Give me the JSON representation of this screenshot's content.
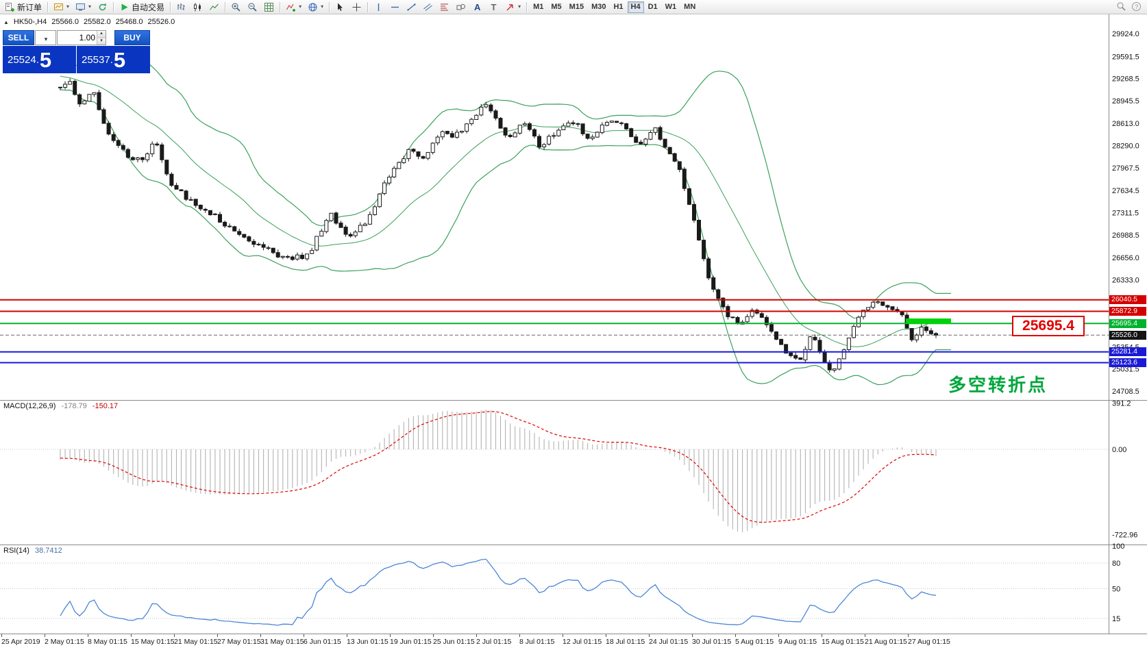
{
  "toolbar": {
    "new_order_label": "新订单",
    "autotrading_label": "自动交易",
    "timeframes": [
      "M1",
      "M5",
      "M15",
      "M30",
      "H1",
      "H4",
      "D1",
      "W1",
      "MN"
    ],
    "active_timeframe": "H4"
  },
  "trade_panel": {
    "sell_label": "SELL",
    "buy_label": "BUY",
    "volume": "1.00",
    "sell_price_main": "25524.",
    "sell_price_big": "5",
    "buy_price_main": "25537.",
    "buy_price_big": "5"
  },
  "header": {
    "symbol_period": "HK50-,H4",
    "open": "25566.0",
    "high": "25582.0",
    "low": "25468.0",
    "close": "25526.0"
  },
  "price_axis_ticks": [
    "29924.0",
    "29591.5",
    "29268.5",
    "28945.5",
    "28613.0",
    "28290.0",
    "27967.5",
    "27634.5",
    "27311.5",
    "26988.5",
    "26656.0",
    "26333.0",
    "25354.5",
    "25031.5",
    "24708.5"
  ],
  "levels": [
    {
      "text": "26040.5",
      "price": 26040.5,
      "color": "#d40000",
      "style": "solid",
      "width": 2
    },
    {
      "text": "25872.9",
      "price": 25872.9,
      "color": "#d40000",
      "style": "solid",
      "width": 2
    },
    {
      "text": "25695.4",
      "price": 25695.4,
      "color": "#00b22d",
      "style": "solid",
      "width": 2
    },
    {
      "text": "25526.0",
      "price": 25526.0,
      "color": "#141414",
      "style": "dashed",
      "width": 1
    },
    {
      "text": "25281.4",
      "price": 25281.4,
      "color": "#1a1ad6",
      "style": "solid",
      "width": 2
    },
    {
      "text": "25123.6",
      "price": 25123.6,
      "color": "#1a1ad6",
      "style": "solid",
      "width": 2
    }
  ],
  "annotations": {
    "price_tag": "25695.4",
    "turning_point": "多空转折点"
  },
  "macd": {
    "title": "MACD(12,26,9)",
    "value_main": "-178.79",
    "value_signal": "-150.17",
    "ticks": [
      {
        "text": "391.2",
        "value": 391.2
      },
      {
        "text": "0.00",
        "value": 0
      },
      {
        "text": "-722.96",
        "value": -722.96
      }
    ]
  },
  "rsi": {
    "title": "RSI(14)",
    "value": "38.7412",
    "ticks": [
      {
        "text": "100",
        "value": 100
      },
      {
        "text": "80",
        "value": 80
      },
      {
        "text": "50",
        "value": 50
      },
      {
        "text": "15",
        "value": 15
      }
    ],
    "levels": [
      80,
      50,
      15
    ]
  },
  "time_axis": [
    "25 Apr 2019",
    "2 May 01:15",
    "8 May 01:15",
    "15 May 01:15",
    "21 May 01:15",
    "27 May 01:15",
    "31 May 01:15",
    "6 Jun 01:15",
    "13 Jun 01:15",
    "19 Jun 01:15",
    "25 Jun 01:15",
    "2 Jul 01:15",
    "8 Jul 01:15",
    "12 Jul 01:15",
    "18 Jul 01:15",
    "24 Jul 01:15",
    "30 Jul 01:15",
    "5 Aug 01:15",
    "9 Aug 01:15",
    "15 Aug 01:15",
    "21 Aug 01:15",
    "27 Aug 01:15"
  ],
  "chart_data": {
    "type": "candlestick",
    "symbol": "HK50-",
    "timeframe": "H4",
    "current_ohlc": {
      "open": 25566.0,
      "high": 25582.0,
      "low": 25468.0,
      "close": 25526.0
    },
    "y_range": [
      24708.5,
      29924.0
    ],
    "num_visible_candles": 182,
    "indicators": [
      "Bollinger Bands(20,2)",
      "MACD(12,26,9)",
      "RSI(14)"
    ],
    "price_path": [
      [
        0,
        29150
      ],
      [
        0.01,
        29280
      ],
      [
        0.021,
        28900
      ],
      [
        0.038,
        29080
      ],
      [
        0.052,
        28520
      ],
      [
        0.076,
        28150
      ],
      [
        0.095,
        28080
      ],
      [
        0.107,
        28400
      ],
      [
        0.127,
        27720
      ],
      [
        0.154,
        27430
      ],
      [
        0.174,
        27300
      ],
      [
        0.201,
        27020
      ],
      [
        0.225,
        26860
      ],
      [
        0.244,
        26700
      ],
      [
        0.262,
        26640
      ],
      [
        0.283,
        26680
      ],
      [
        0.307,
        27300
      ],
      [
        0.33,
        26950
      ],
      [
        0.354,
        27250
      ],
      [
        0.377,
        27900
      ],
      [
        0.401,
        28250
      ],
      [
        0.416,
        28100
      ],
      [
        0.436,
        28520
      ],
      [
        0.451,
        28430
      ],
      [
        0.487,
        28920
      ],
      [
        0.51,
        28380
      ],
      [
        0.53,
        28650
      ],
      [
        0.549,
        28260
      ],
      [
        0.569,
        28540
      ],
      [
        0.588,
        28620
      ],
      [
        0.604,
        28400
      ],
      [
        0.624,
        28660
      ],
      [
        0.643,
        28580
      ],
      [
        0.663,
        28300
      ],
      [
        0.678,
        28560
      ],
      [
        0.706,
        27980
      ],
      [
        0.721,
        27350
      ],
      [
        0.741,
        26300
      ],
      [
        0.76,
        25850
      ],
      [
        0.776,
        25640
      ],
      [
        0.792,
        25940
      ],
      [
        0.807,
        25700
      ],
      [
        0.827,
        25280
      ],
      [
        0.843,
        25120
      ],
      [
        0.858,
        25520
      ],
      [
        0.882,
        24960
      ],
      [
        0.897,
        25400
      ],
      [
        0.913,
        25820
      ],
      [
        0.929,
        26000
      ],
      [
        0.944,
        25940
      ],
      [
        0.96,
        25840
      ],
      [
        0.972,
        25440
      ],
      [
        0.983,
        25660
      ],
      [
        1,
        25526
      ]
    ],
    "bollinger": {
      "period": 20,
      "deviation": 2
    },
    "series_colors": {
      "bull": "#ffffff",
      "bear": "#1a1a1a",
      "candle_outline": "#1a1a1a",
      "bands": "#3aa05a",
      "macd_histogram": "#b2b2b2",
      "macd_signal": "#e00000",
      "rsi_line": "#4a86d8",
      "trend_segment": "#00d10a"
    }
  }
}
